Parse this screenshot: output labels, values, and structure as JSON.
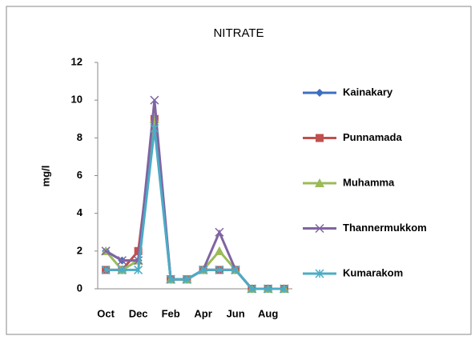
{
  "chart_data": {
    "type": "line",
    "title": "NITRATE",
    "y_label": "mg/l",
    "categories": [
      "Oct",
      null,
      "Dec",
      null,
      "Feb",
      null,
      "Apr",
      null,
      "Jun",
      null,
      "Aug",
      null
    ],
    "ylim": [
      0,
      12
    ],
    "yticks": [
      0,
      2,
      4,
      6,
      8,
      10,
      12
    ],
    "series": [
      {
        "name": "Kainakary",
        "color": "#3d6fc2",
        "marker": "diamond",
        "values": [
          2,
          1.5,
          1.5,
          9,
          0.5,
          0.5,
          1,
          1,
          1,
          0,
          0,
          0
        ]
      },
      {
        "name": "Punnamada",
        "color": "#c0504d",
        "marker": "square",
        "values": [
          1,
          1,
          2,
          9,
          0.5,
          0.5,
          1,
          1,
          1,
          0,
          0,
          0
        ]
      },
      {
        "name": "Muhamma",
        "color": "#9bbb59",
        "marker": "triangle",
        "values": [
          2,
          1,
          1.5,
          9,
          0.5,
          0.5,
          1,
          2,
          1,
          0,
          0,
          0
        ]
      },
      {
        "name": "Thannermukkom",
        "color": "#8064a2",
        "marker": "x",
        "values": [
          2,
          1.5,
          1.5,
          10,
          0.5,
          0.5,
          1,
          3,
          1,
          0,
          0,
          0
        ]
      },
      {
        "name": "Kumarakom",
        "color": "#4bacc6",
        "marker": "star",
        "values": [
          1,
          1,
          1,
          8.5,
          0.5,
          0.5,
          1,
          1,
          1,
          0,
          0,
          0
        ]
      }
    ]
  }
}
